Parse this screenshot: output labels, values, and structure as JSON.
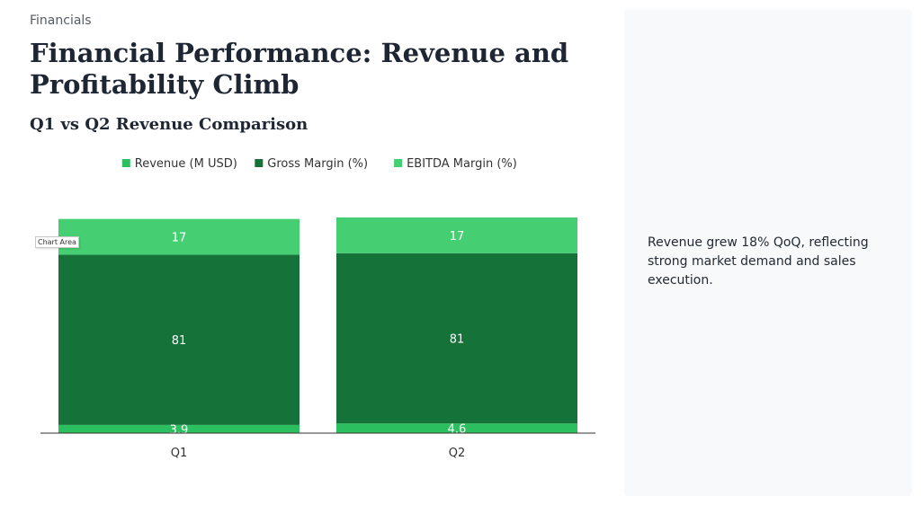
{
  "header": {
    "section": "Financials",
    "title": "Financial Performance: Revenue and Profitability Climb",
    "subtitle": "Q1 vs Q2 Revenue Comparison"
  },
  "tooltip": "Chart Area",
  "insight": "Revenue grew 18% QoQ, reflecting strong market demand and sales execution.",
  "colors": {
    "revenue": "#2cbf5f",
    "gross_margin": "#157238",
    "ebitda_margin": "#45cf72",
    "axis": "#333333",
    "panel": "#f7f9fb"
  },
  "chart_data": {
    "type": "bar",
    "stacked": true,
    "categories": [
      "Q1",
      "Q2"
    ],
    "series": [
      {
        "name": "Revenue (M USD)",
        "values": [
          3.9,
          4.6
        ]
      },
      {
        "name": "Gross Margin (%)",
        "values": [
          81,
          81
        ]
      },
      {
        "name": "EBITDA Margin (%)",
        "values": [
          17,
          17
        ]
      }
    ],
    "title": "Q1 vs Q2 Revenue Comparison",
    "legend": "top-center",
    "grid": false,
    "ylim": [
      0,
      102.6
    ]
  }
}
